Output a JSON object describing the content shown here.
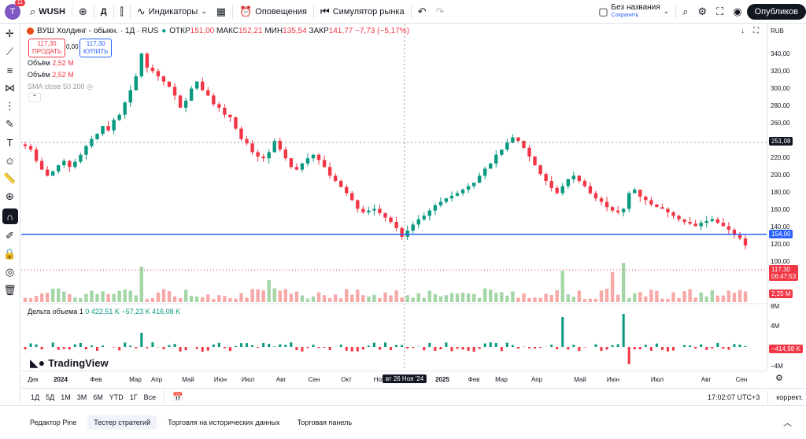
{
  "toolbar": {
    "avatar_letter": "T",
    "avatar_badge": "11",
    "symbol": "WUSH",
    "interval": "Д",
    "indicators": "Индикаторы",
    "alerts": "Оповещения",
    "replay": "Симулятор рынка",
    "layout_name": "Без названия",
    "layout_status": "Сохранить",
    "publish": "Опубликов"
  },
  "legend": {
    "title": "ВУШ Холдинг - обыкн. · 1Д · RUS",
    "o_label": "ОТКР",
    "o": "151,00",
    "h_label": "МАКС",
    "h": "152,21",
    "l_label": "МИН",
    "l": "135,54",
    "c_label": "ЗАКР",
    "c": "141,77",
    "chg": "−7,73 (−5,17%)",
    "sell_price": "117,30",
    "sell_label": "ПРОДАТЬ",
    "spread": "0,00",
    "buy_price": "117,30",
    "buy_label": "КУПИТЬ",
    "vol1_label": "Объём",
    "vol1": "2,52 M",
    "vol2_label": "Объём",
    "vol2": "2,52 M",
    "sma": "SMA close 50 200",
    "delta": "Дельта объема 1",
    "delta_v1": "0",
    "delta_v2": "422,51 K",
    "delta_v3": "−57,23 K",
    "delta_v4": "416,08 K",
    "currency": "RUB"
  },
  "axis": {
    "ticks": [
      "340,00",
      "320,00",
      "300,00",
      "280,00",
      "260,00",
      "240,00",
      "220,00",
      "200,00",
      "180,00",
      "160,00",
      "140,00",
      "120,00",
      "100,00"
    ],
    "crosshair": "251,08",
    "line_label": "154,00",
    "last_price": "117,30",
    "countdown": "06:47:53",
    "vol_label": "2,25 M",
    "delta_ticks": [
      "8M",
      "4M",
      "−4M"
    ],
    "delta_label": "−414,98 K"
  },
  "xaxis": {
    "ticks": [
      "Дек",
      "2024",
      "Фев",
      "Мар",
      "Апр",
      "Май",
      "Июн",
      "Июл",
      "Авг",
      "Сен",
      "Окт",
      "Ноя",
      "2025",
      "Фев",
      "Мар",
      "Апр",
      "Май",
      "Июн",
      "Июл",
      "Авг",
      "Сен"
    ],
    "crosshair": "вт 26 Ноя '24"
  },
  "range": {
    "items": [
      "1Д",
      "5Д",
      "1М",
      "3М",
      "6М",
      "YTD",
      "1Г",
      "Все"
    ],
    "time": "17:02:07 UTC+3",
    "adj": "коррект."
  },
  "bottom": {
    "tabs": [
      "Редактор Pine",
      "Тестер стратегий",
      "Торговля на исторических данных",
      "Торговая панель"
    ]
  },
  "brand": "TradingView",
  "chart_data": {
    "type": "candlestick",
    "series": [
      {
        "values": [
          232,
          228,
          215,
          205,
          198,
          203,
          210,
          215,
          208,
          214,
          222,
          232,
          240,
          246,
          255,
          250,
          262,
          268,
          282,
          296,
          312,
          338,
          322,
          318,
          312,
          306,
          300,
          290,
          276,
          284,
          298,
          306,
          296,
          290,
          280,
          276,
          268,
          265,
          252,
          240,
          235,
          225,
          220,
          218,
          225,
          238,
          228,
          218,
          208,
          205,
          212,
          218,
          222,
          216,
          208,
          198,
          192,
          185,
          178,
          170,
          160,
          156,
          158,
          160,
          155,
          150,
          145,
          138,
          128,
          135,
          142,
          148,
          152,
          158,
          164,
          168,
          172,
          175,
          178,
          182,
          186,
          190,
          198,
          206,
          212,
          222,
          228,
          236,
          242,
          238,
          230,
          220,
          210,
          200,
          192,
          184,
          178,
          186,
          194,
          198,
          192,
          186,
          178,
          172,
          168,
          162,
          158,
          156,
          160,
          178,
          182,
          174,
          170,
          165,
          162,
          160,
          156,
          152,
          148,
          145,
          143,
          140,
          144,
          146,
          148,
          144,
          140,
          136,
          130,
          126,
          118
        ]
      }
    ]
  }
}
